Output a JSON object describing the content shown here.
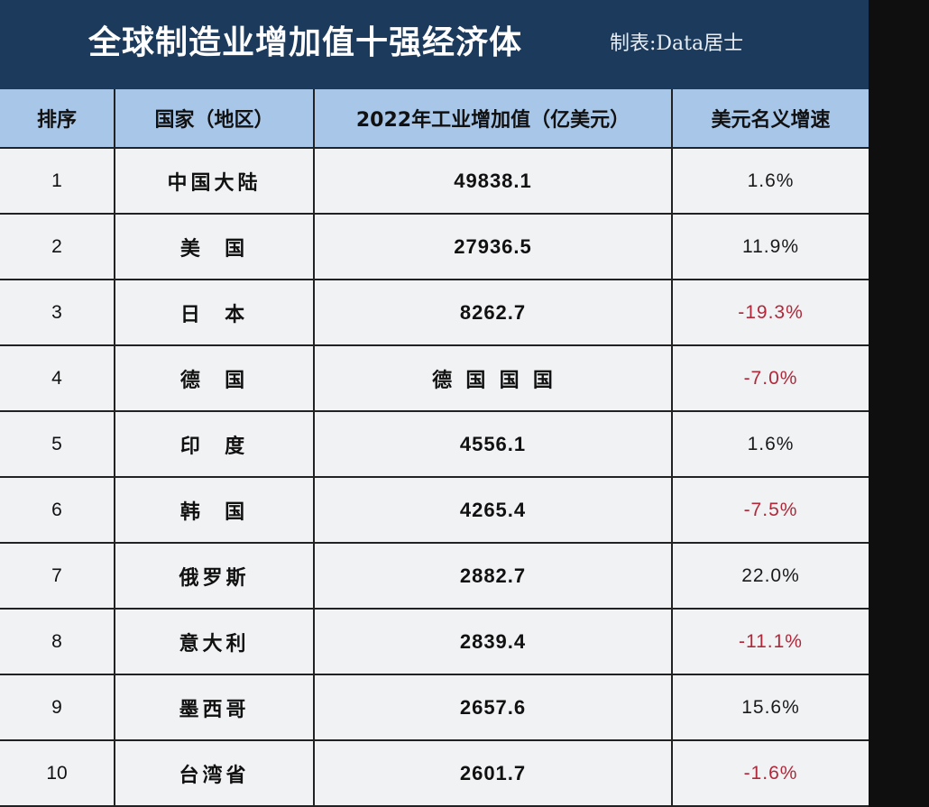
{
  "title": {
    "main": "全球制造业增加值十强经济体",
    "credit": "制表:Data居士"
  },
  "table": {
    "headers": [
      "排序",
      "国家（地区）",
      "2022年工业增加值（亿美元）",
      "美元名义增速"
    ],
    "rows": [
      {
        "rank": "1",
        "country": "中国大陆",
        "value": "49838.1",
        "growth": "1.6%",
        "negative": false
      },
      {
        "rank": "2",
        "country": "美  国",
        "value": "27936.5",
        "growth": "11.9%",
        "negative": false
      },
      {
        "rank": "3",
        "country": "日  本",
        "value": "8262.7",
        "growth": "-19.3%",
        "negative": true
      },
      {
        "rank": "4",
        "country": "德  国",
        "value": "德  国  国  国",
        "growth": "-7.0%",
        "negative": true
      },
      {
        "rank": "5",
        "country": "印  度",
        "value": "4556.1",
        "growth": "1.6%",
        "negative": false
      },
      {
        "rank": "6",
        "country": "韩  国",
        "value": "4265.4",
        "growth": "-7.5%",
        "negative": true
      },
      {
        "rank": "7",
        "country": "俄罗斯",
        "value": "2882.7",
        "growth": "22.0%",
        "negative": false
      },
      {
        "rank": "8",
        "country": "意大利",
        "value": "2839.4",
        "growth": "-11.1%",
        "negative": true
      },
      {
        "rank": "9",
        "country": "墨西哥",
        "value": "2657.6",
        "growth": "15.6%",
        "negative": false
      },
      {
        "rank": "10",
        "country": "台湾省",
        "value": "2601.7",
        "growth": "-1.6%",
        "negative": true
      }
    ]
  },
  "colors": {
    "title_bg": "#1b3a5c",
    "header_bg": "#a7c6e8",
    "cell_bg": "#f1f2f4",
    "negative": "#b0283a",
    "side_strip": "#0f0f0f"
  }
}
